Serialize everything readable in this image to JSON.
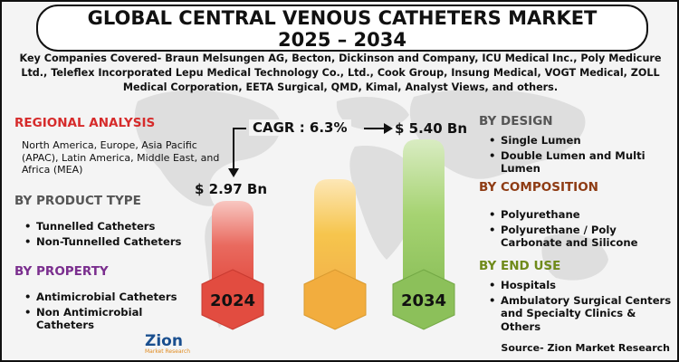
{
  "title_line1": "GLOBAL CENTRAL VENOUS CATHETERS MARKET",
  "title_line2": "2025 – 2034",
  "key_companies": "Key Companies Covered- Braun Melsungen AG, Becton, Dickinson and Company, ICU Medical Inc., Poly Medicure Ltd., Teleflex Incorporated Lepu Medical Technology Co., Ltd., Cook Group, Insung Medical, VOGT Medical, ZOLL Medical Corporation, EETA Surgical, QMD, Kimal, Analyst Views, and others.",
  "regional": {
    "heading": "REGIONAL ANALYSIS",
    "text": "North America, Europe, Asia Pacific (APAC), Latin America, Middle East, and Africa (MEA)"
  },
  "product_type": {
    "heading": "BY PRODUCT TYPE",
    "items": [
      "Tunnelled Catheters",
      "Non-Tunnelled Catheters"
    ]
  },
  "property": {
    "heading": "BY PROPERTY",
    "items": [
      "Antimicrobial Catheters",
      "Non Antimicrobial Catheters"
    ]
  },
  "design": {
    "heading": "BY DESIGN",
    "items": [
      "Single Lumen",
      "Double Lumen and Multi Lumen"
    ]
  },
  "composition": {
    "heading": "BY  COMPOSITION",
    "items": [
      "Polyurethane",
      "Polyurethane / Poly Carbonate and Silicone"
    ]
  },
  "end_use": {
    "heading": "BY END USE",
    "items": [
      "Hospitals",
      "Ambulatory Surgical Centers and Specialty Clinics & Others"
    ]
  },
  "market": {
    "cagr": "CAGR : 6.3%",
    "start_value": "$ 2.97 Bn",
    "end_value": "$ 5.40 Bn",
    "start_year": "2024",
    "end_year": "2034"
  },
  "logo": {
    "text": "Zion",
    "subtext": "Market Research"
  },
  "source": "Source- Zion Market Research",
  "colors": {
    "red_heading": "#d62b2b",
    "gray_heading": "#555555",
    "purple_heading": "#7a2e8e",
    "brown_heading": "#8e3b13",
    "olive_heading": "#6f8a1a",
    "pillar_red": "#e96a5f",
    "pillar_orange": "#f2b24a",
    "pillar_green": "#9ccc6a",
    "logo_blue": "#1a4f8f"
  }
}
